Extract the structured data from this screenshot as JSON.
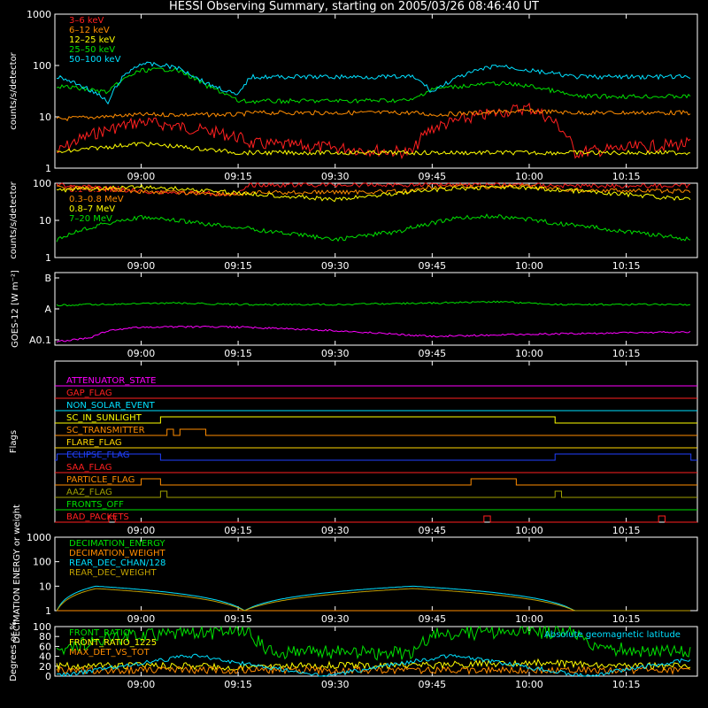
{
  "title": "HESSI Observing Summary, starting on 2005/03/26 08:46:40 UT",
  "chart_data": [
    {
      "type": "line",
      "panel": "count rates",
      "ylabel": "counts/s/detector",
      "yscale": "log",
      "ylim": [
        1,
        1000
      ],
      "yticks": [
        "1",
        "10",
        "100",
        "1000"
      ],
      "xticks": [
        "09:00",
        "09:15",
        "09:30",
        "09:45",
        "10:00",
        "10:15"
      ],
      "legend_location": "top-left",
      "series": [
        {
          "name": "3–6 keV",
          "color": "#ff2020",
          "x": [
            "08:47",
            "09:00",
            "09:15",
            "09:17",
            "09:42",
            "09:45",
            "10:00",
            "10:07",
            "10:25"
          ],
          "values": [
            2,
            8,
            4,
            3,
            2,
            6,
            15,
            2,
            3
          ]
        },
        {
          "name": "6–12 keV",
          "color": "#ff8c00",
          "x": [
            "08:47",
            "09:00",
            "09:15",
            "09:17",
            "09:42",
            "09:45",
            "10:00",
            "10:07",
            "10:25"
          ],
          "values": [
            9,
            11,
            11,
            12,
            12,
            11,
            13,
            12,
            12
          ]
        },
        {
          "name": "12–25 keV",
          "color": "#ffff00",
          "x": [
            "08:47",
            "09:00",
            "09:15",
            "09:17",
            "09:42",
            "09:45",
            "10:00",
            "10:07",
            "10:25"
          ],
          "values": [
            2,
            3,
            2,
            2,
            2,
            2,
            2,
            2,
            2
          ]
        },
        {
          "name": "25–50 keV",
          "color": "#00e000",
          "x": [
            "08:47",
            "08:55",
            "09:00",
            "09:05",
            "09:10",
            "09:15",
            "09:17",
            "09:42",
            "09:45",
            "09:55",
            "10:00",
            "10:07",
            "10:25"
          ],
          "values": [
            40,
            30,
            80,
            85,
            40,
            20,
            20,
            21,
            35,
            45,
            40,
            25,
            25
          ]
        },
        {
          "name": "50–100 keV",
          "color": "#00e0ff",
          "x": [
            "08:47",
            "08:55",
            "09:00",
            "09:05",
            "09:10",
            "09:15",
            "09:17",
            "09:42",
            "09:45",
            "09:55",
            "10:00",
            "10:07",
            "10:25"
          ],
          "values": [
            60,
            18,
            110,
            95,
            45,
            25,
            60,
            60,
            30,
            100,
            80,
            60,
            60
          ]
        }
      ]
    },
    {
      "type": "line",
      "panel": "high energy count rates",
      "ylabel": "counts/s/detector",
      "yscale": "log",
      "ylim": [
        1,
        100
      ],
      "yticks": [
        "1",
        "10",
        "100"
      ],
      "xticks": [
        "09:00",
        "09:15",
        "09:30",
        "09:45",
        "10:00",
        "10:15"
      ],
      "legend_location": "top-left",
      "series": [
        {
          "name": "0.1–0.3 MeV",
          "color": "#ff2020",
          "x": [
            "08:47",
            "09:00",
            "09:15",
            "09:17",
            "09:42",
            "09:45",
            "10:00",
            "10:07",
            "10:25"
          ],
          "values": [
            90,
            60,
            50,
            90,
            90,
            95,
            90,
            85,
            85
          ]
        },
        {
          "name": "0.3–0.8 MeV",
          "color": "#ff8c00",
          "x": [
            "08:47",
            "09:00",
            "09:15",
            "09:17",
            "09:42",
            "09:45",
            "10:00",
            "10:07",
            "10:25"
          ],
          "values": [
            80,
            60,
            50,
            55,
            60,
            80,
            80,
            65,
            60
          ]
        },
        {
          "name": "0.8–7 MeV",
          "color": "#ffff00",
          "x": [
            "08:47",
            "09:00",
            "09:15",
            "09:30",
            "09:45",
            "09:55",
            "10:05",
            "10:25"
          ],
          "values": [
            65,
            80,
            55,
            35,
            65,
            80,
            65,
            35
          ]
        },
        {
          "name": "7–20 MeV",
          "color": "#00e000",
          "x": [
            "08:47",
            "09:00",
            "09:10",
            "09:20",
            "09:30",
            "09:40",
            "09:50",
            "09:55",
            "10:05",
            "10:15",
            "10:25"
          ],
          "values": [
            3,
            12,
            8,
            5,
            3,
            5,
            12,
            13,
            8,
            5,
            3
          ]
        }
      ]
    },
    {
      "type": "line",
      "panel": "GOES",
      "ylabel": "GOES-12 [W m⁻²]",
      "yticks": [
        "A0.1",
        "A",
        "B"
      ],
      "xticks": [
        "09:00",
        "09:15",
        "09:30",
        "09:45",
        "10:00",
        "10:15"
      ],
      "series": [
        {
          "color": "#00e000",
          "x": [
            "08:47",
            "09:05",
            "09:15",
            "09:30",
            "09:45",
            "09:55",
            "10:05",
            "10:25"
          ],
          "values": [
            0.55,
            0.58,
            0.56,
            0.56,
            0.58,
            0.6,
            0.56,
            0.56
          ]
        },
        {
          "color": "#ff00ff",
          "x": [
            "08:47",
            "08:52",
            "08:55",
            "09:00",
            "09:15",
            "09:30",
            "09:45",
            "10:00",
            "10:15",
            "10:25"
          ],
          "values": [
            0.05,
            0.1,
            0.2,
            0.25,
            0.25,
            0.2,
            0.12,
            0.15,
            0.17,
            0.18
          ]
        }
      ]
    },
    {
      "type": "line",
      "panel": "flags",
      "ylabel": "Flags",
      "xticks": [
        "09:00",
        "09:15",
        "09:30",
        "09:45",
        "10:00",
        "10:15"
      ],
      "flags": [
        {
          "name": "ATTENUATOR_STATE",
          "color": "#ff00ff",
          "on_intervals": []
        },
        {
          "name": "GAP_FLAG",
          "color": "#ff2020",
          "on_intervals": []
        },
        {
          "name": "NON_SOLAR_EVENT",
          "color": "#00e0ff",
          "on_intervals": []
        },
        {
          "name": "SC_IN_SUNLIGHT",
          "color": "#ffff00",
          "on_intervals": [
            [
              "09:03",
              "10:04"
            ]
          ]
        },
        {
          "name": "SC_TRANSMITTER",
          "color": "#ff8c00",
          "on_intervals": [
            [
              "09:04",
              "09:05"
            ],
            [
              "09:06",
              "09:10"
            ]
          ]
        },
        {
          "name": "FLARE_FLAG",
          "color": "#ffd700",
          "on_intervals": []
        },
        {
          "name": "ECLIPSE_FLAG",
          "color": "#2040ff",
          "on_intervals": [
            [
              "08:47",
              "09:03"
            ],
            [
              "10:04",
              "10:25"
            ]
          ]
        },
        {
          "name": "SAA_FLAG",
          "color": "#ff2020",
          "on_intervals": []
        },
        {
          "name": "PARTICLE_FLAG",
          "color": "#ff8c00",
          "on_intervals": [
            [
              "09:00",
              "09:03"
            ],
            [
              "09:51",
              "09:58"
            ]
          ]
        },
        {
          "name": "AAZ_FLAG",
          "color": "#a0a000",
          "on_intervals": [
            [
              "09:03",
              "09:04"
            ],
            [
              "10:04",
              "10:05"
            ]
          ]
        },
        {
          "name": "FRONTS_OFF",
          "color": "#00e000",
          "on_intervals": []
        },
        {
          "name": "BAD_PACKETS",
          "color": "#ff2020",
          "on_intervals": [
            [
              "08:55",
              "08:56"
            ],
            [
              "09:53",
              "09:54"
            ],
            [
              "10:20",
              "10:21"
            ]
          ]
        }
      ]
    },
    {
      "type": "line",
      "panel": "decimation",
      "ylabel": "DECIMATION ENERGY or weight",
      "yscale": "log",
      "ylim": [
        1,
        1000
      ],
      "yticks": [
        "1",
        "10",
        "100",
        "1000"
      ],
      "xticks": [
        "09:00",
        "09:15",
        "09:30",
        "09:45",
        "10:00",
        "10:15"
      ],
      "legend_location": "top-left",
      "series": [
        {
          "name": "DECIMATION_ENERGY",
          "color": "#00e000",
          "x": [
            "08:47",
            "10:25"
          ],
          "values": [
            1,
            1
          ]
        },
        {
          "name": "DECIMATION_WEIGHT",
          "color": "#ff8c00",
          "x": [
            "08:47",
            "10:25"
          ],
          "values": [
            1,
            1
          ]
        },
        {
          "name": "REAR_DEC_CHAN/128",
          "color": "#00e0ff",
          "x": [
            "08:47",
            "08:53",
            "09:16",
            "09:42",
            "10:07",
            "10:25"
          ],
          "values": [
            1,
            10,
            1,
            10,
            1,
            1
          ]
        },
        {
          "name": "REAR_DEC_WEIGHT",
          "color": "#c0a000",
          "x": [
            "08:47",
            "08:53",
            "09:16",
            "09:42",
            "10:07",
            "10:25"
          ],
          "values": [
            1,
            8,
            1,
            8,
            1,
            1
          ]
        }
      ]
    },
    {
      "type": "line",
      "panel": "ratios",
      "ylabel": "Degrees or %",
      "ylim": [
        0,
        100
      ],
      "yticks": [
        "0",
        "20",
        "40",
        "60",
        "80",
        "100"
      ],
      "xticks": [
        "09:00",
        "09:15",
        "09:30",
        "09:45",
        "10:00",
        "10:15"
      ],
      "legend_location": "top-left",
      "series": [
        {
          "name": "FRONT_RATIO",
          "color": "#00e000",
          "x": [
            "08:47",
            "08:55",
            "09:00",
            "09:10",
            "09:16",
            "09:20",
            "09:42",
            "09:45",
            "10:00",
            "10:07",
            "10:10",
            "10:25"
          ],
          "values": [
            55,
            75,
            85,
            88,
            90,
            50,
            45,
            85,
            90,
            88,
            55,
            50
          ]
        },
        {
          "name": "FRONT_RATIO_1225",
          "color": "#ffff00",
          "x": [
            "08:47",
            "09:00",
            "09:15",
            "09:30",
            "09:45",
            "10:00",
            "10:15",
            "10:25"
          ],
          "values": [
            20,
            22,
            18,
            22,
            22,
            28,
            20,
            20
          ]
        },
        {
          "name": "MAX_DET_VS_TOT",
          "color": "#ff8c00",
          "x": [
            "08:47",
            "09:00",
            "09:15",
            "09:30",
            "09:45",
            "10:00",
            "10:15",
            "10:25"
          ],
          "values": [
            12,
            12,
            12,
            12,
            12,
            12,
            12,
            12
          ]
        },
        {
          "name": "Absolute geomagnetic latitude",
          "color": "#00e0ff",
          "x": [
            "08:47",
            "09:08",
            "09:28",
            "09:48",
            "10:09",
            "10:25"
          ],
          "values": [
            0,
            42,
            0,
            42,
            0,
            35
          ]
        }
      ]
    }
  ]
}
